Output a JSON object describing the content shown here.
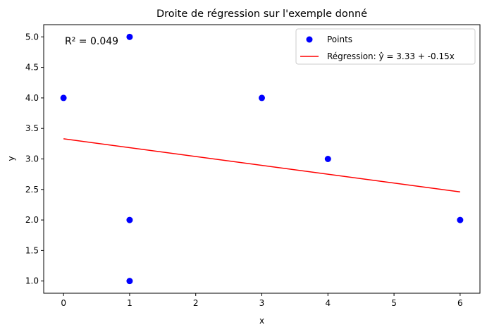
{
  "chart_data": {
    "type": "scatter",
    "title": "Droite de régression sur l'exemple donné",
    "xlabel": "x",
    "ylabel": "y",
    "xlim": [
      -0.3,
      6.3
    ],
    "ylim": [
      0.8,
      5.2
    ],
    "xticks": [
      "0",
      "1",
      "2",
      "3",
      "4",
      "5",
      "6"
    ],
    "yticks": [
      "1.0",
      "1.5",
      "2.0",
      "2.5",
      "3.0",
      "3.5",
      "4.0",
      "4.5",
      "5.0"
    ],
    "grid": false,
    "legend_position": "top-right",
    "series": [
      {
        "name": "Points",
        "kind": "scatter",
        "color": "#0000ff",
        "points": [
          {
            "x": 0,
            "y": 4
          },
          {
            "x": 1,
            "y": 5
          },
          {
            "x": 1,
            "y": 2
          },
          {
            "x": 1,
            "y": 1
          },
          {
            "x": 3,
            "y": 4
          },
          {
            "x": 4,
            "y": 3
          },
          {
            "x": 6,
            "y": 2
          }
        ]
      },
      {
        "name": "Régression: ŷ = 3.33 + -0.15x",
        "kind": "line",
        "color": "#ff0000",
        "points": [
          {
            "x": 0,
            "y": 3.33
          },
          {
            "x": 6,
            "y": 2.46
          }
        ]
      }
    ],
    "annotations": [
      {
        "text": "R² = 0.049"
      }
    ]
  }
}
